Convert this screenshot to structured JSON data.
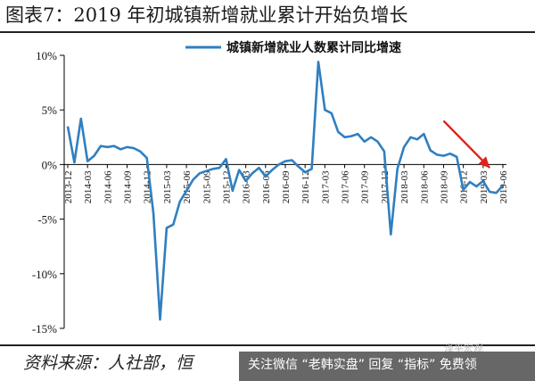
{
  "header": {
    "title": "图表7：2019 年初城镇新增就业累计开始负增长"
  },
  "footer": {
    "source": "资料来源：人社部，恒",
    "banner": "关注微信 “老韩实盘” 回复 “指标” 免费领",
    "watermark": "泽平宏观"
  },
  "colors": {
    "line": "#2f7fc1",
    "arrow": "#e0201b",
    "axis": "#000000"
  },
  "chart_data": {
    "type": "line",
    "title": "",
    "xlabel": "",
    "ylabel": "",
    "ylim": [
      -15,
      10
    ],
    "yticks": [
      10,
      5,
      0,
      -5,
      -10,
      -15
    ],
    "ytick_labels": [
      "10%",
      "5%",
      "0%",
      "-5%",
      "-10%",
      "-15%"
    ],
    "grid": false,
    "legend": {
      "position": "top-center"
    },
    "x_tick_labels": [
      "2013-12",
      "2014-03",
      "2014-06",
      "2014-09",
      "2014-12",
      "2015-03",
      "2015-06",
      "2015-09",
      "2015-12",
      "2016-03",
      "2016-06",
      "2016-09",
      "2016-12",
      "2017-03",
      "2017-06",
      "2017-09",
      "2017-12",
      "2018-03",
      "2018-06",
      "2018-09",
      "2018-12",
      "2019-03",
      "2019-06"
    ],
    "series": [
      {
        "name": "城镇新增就业人数累计同比增速",
        "x": [
          "2013-12",
          "2014-01",
          "2014-02",
          "2014-03",
          "2014-04",
          "2014-05",
          "2014-06",
          "2014-07",
          "2014-08",
          "2014-09",
          "2014-10",
          "2014-11",
          "2014-12",
          "2015-01",
          "2015-02",
          "2015-03",
          "2015-04",
          "2015-05",
          "2015-06",
          "2015-07",
          "2015-08",
          "2015-09",
          "2015-10",
          "2015-11",
          "2015-12",
          "2016-01",
          "2016-02",
          "2016-03",
          "2016-04",
          "2016-05",
          "2016-06",
          "2016-07",
          "2016-08",
          "2016-09",
          "2016-10",
          "2016-11",
          "2016-12",
          "2017-01",
          "2017-02",
          "2017-03",
          "2017-04",
          "2017-05",
          "2017-06",
          "2017-07",
          "2017-08",
          "2017-09",
          "2017-10",
          "2017-11",
          "2017-12",
          "2018-01",
          "2018-02",
          "2018-03",
          "2018-04",
          "2018-05",
          "2018-06",
          "2018-07",
          "2018-08",
          "2018-09",
          "2018-10",
          "2018-11",
          "2018-12",
          "2019-01",
          "2019-02",
          "2019-03",
          "2019-04",
          "2019-05",
          "2019-06"
        ],
        "y": [
          3.5,
          0.2,
          4.2,
          0.3,
          0.8,
          1.7,
          1.6,
          1.7,
          1.4,
          1.6,
          1.5,
          1.2,
          0.6,
          -4.5,
          -14.2,
          -5.8,
          -5.5,
          -3.4,
          -2.4,
          -1.4,
          -0.8,
          -0.6,
          -0.4,
          -0.3,
          0.5,
          -2.4,
          -0.5,
          -1.5,
          -0.8,
          -0.3,
          -1.1,
          -0.5,
          0.0,
          0.3,
          0.4,
          -0.2,
          -0.7,
          -0.4,
          9.4,
          5.0,
          4.7,
          3.0,
          2.5,
          2.6,
          2.8,
          2.1,
          2.5,
          2.1,
          1.2,
          -6.4,
          -0.4,
          1.6,
          2.5,
          2.3,
          2.8,
          1.3,
          0.9,
          0.8,
          1.0,
          0.7,
          -2.3,
          -1.6,
          -2.0,
          -1.5,
          -2.5,
          -2.6,
          -1.9
        ]
      }
    ],
    "annotations": [
      {
        "type": "arrow",
        "from_x": "2018-09",
        "from_y": 4.0,
        "to_x": "2019-04",
        "to_y": -0.3
      }
    ]
  }
}
